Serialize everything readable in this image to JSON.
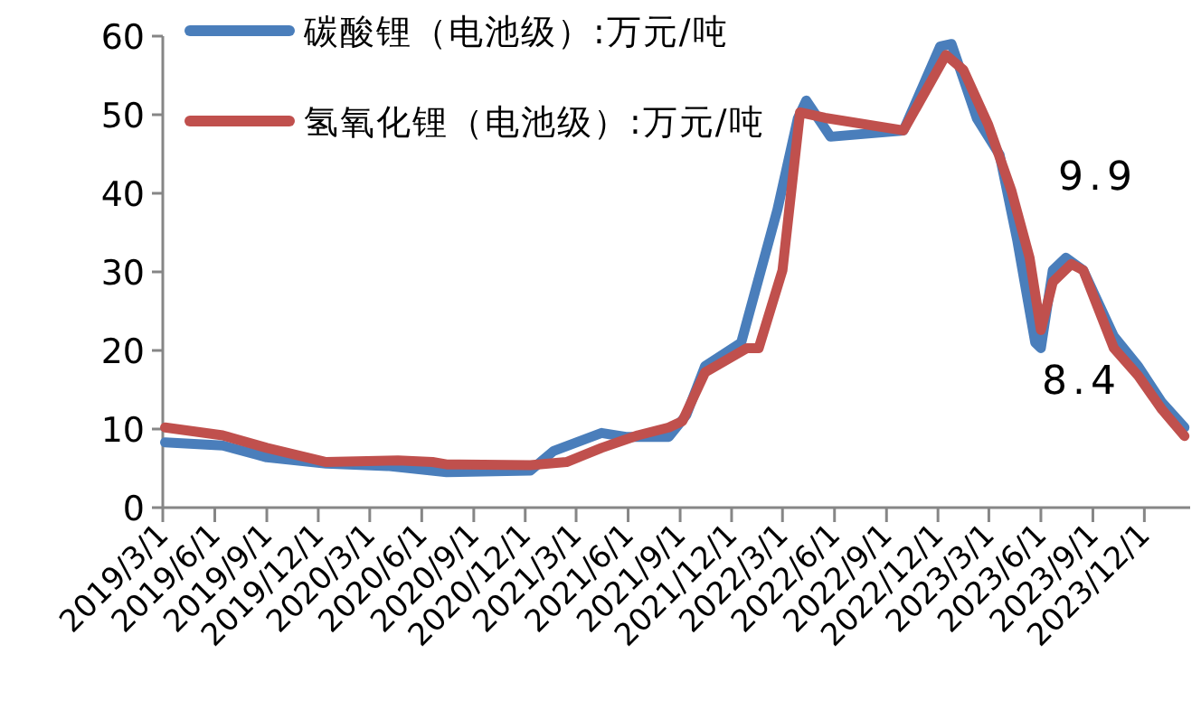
{
  "chart_data": {
    "type": "line",
    "xlim": [
      "2019-03-01",
      "2024-02-20"
    ],
    "xticks": [
      {
        "value": "2019-03-01",
        "label": "2019/3/1"
      },
      {
        "value": "2019-06-01",
        "label": "2019/6/1"
      },
      {
        "value": "2019-09-01",
        "label": "2019/9/1"
      },
      {
        "value": "2019-12-01",
        "label": "2019/12/1"
      },
      {
        "value": "2020-03-01",
        "label": "2020/3/1"
      },
      {
        "value": "2020-06-01",
        "label": "2020/6/1"
      },
      {
        "value": "2020-09-01",
        "label": "2020/9/1"
      },
      {
        "value": "2020-12-01",
        "label": "2020/12/1"
      },
      {
        "value": "2021-03-01",
        "label": "2021/3/1"
      },
      {
        "value": "2021-06-01",
        "label": "2021/6/1"
      },
      {
        "value": "2021-09-01",
        "label": "2021/9/1"
      },
      {
        "value": "2021-12-01",
        "label": "2021/12/1"
      },
      {
        "value": "2022-03-01",
        "label": "2022/3/1"
      },
      {
        "value": "2022-06-01",
        "label": "2022/6/1"
      },
      {
        "value": "2022-09-01",
        "label": "2022/9/1"
      },
      {
        "value": "2022-12-01",
        "label": "2022/12/1"
      },
      {
        "value": "2023-03-01",
        "label": "2023/3/1"
      },
      {
        "value": "2023-06-01",
        "label": "2023/6/1"
      },
      {
        "value": "2023-09-01",
        "label": "2023/9/1"
      },
      {
        "value": "2023-12-01",
        "label": "2023/12/1"
      }
    ],
    "ylim": [
      0,
      60
    ],
    "yticks": [
      0,
      10,
      20,
      30,
      40,
      50,
      60
    ],
    "grid": false,
    "legend": "top",
    "marker": "none",
    "line_style": "solid",
    "series": [
      {
        "name": "碳酸锂（电池级）:万元/吨",
        "color": "#4a7ebb",
        "x": [
          "2019-03-05",
          "2019-06-15",
          "2019-09-01",
          "2019-12-15",
          "2020-04-01",
          "2020-07-15",
          "2020-12-10",
          "2021-01-20",
          "2021-04-15",
          "2021-05-28",
          "2021-08-12",
          "2021-09-12",
          "2021-10-15",
          "2021-12-18",
          "2022-02-20",
          "2022-03-28",
          "2022-04-12",
          "2022-05-25",
          "2022-10-01",
          "2022-12-05",
          "2022-12-25",
          "2023-02-08",
          "2023-03-20",
          "2023-04-20",
          "2023-05-22",
          "2023-06-01",
          "2023-06-22",
          "2023-07-15",
          "2023-08-15",
          "2023-10-08",
          "2023-11-20",
          "2024-01-01",
          "2024-02-10"
        ],
        "values": [
          8.3,
          7.9,
          6.4,
          5.6,
          5.3,
          4.5,
          4.7,
          7.2,
          9.5,
          9.0,
          9.0,
          11.8,
          18,
          21,
          37.9,
          49.5,
          51.8,
          47.2,
          48.0,
          58.7,
          59,
          49.5,
          44.9,
          34.1,
          21,
          20.3,
          30.2,
          31.8,
          30.2,
          21.8,
          18,
          13.4,
          10.2
        ]
      },
      {
        "name": "氢氧化锂（电池级）:万元/吨",
        "color": "#c0504d",
        "x": [
          "2019-03-05",
          "2019-06-15",
          "2019-09-01",
          "2019-12-15",
          "2020-04-20",
          "2020-06-20",
          "2020-07-15",
          "2020-12-10",
          "2021-02-12",
          "2021-04-15",
          "2021-06-18",
          "2021-08-12",
          "2021-09-05",
          "2021-10-15",
          "2021-12-28",
          "2022-01-18",
          "2022-03-01",
          "2022-04-01",
          "2022-05-15",
          "2022-10-01",
          "2022-12-15",
          "2023-01-15",
          "2023-02-28",
          "2023-04-10",
          "2023-05-12",
          "2023-06-01",
          "2023-06-22",
          "2023-07-25",
          "2023-08-15",
          "2023-10-08",
          "2023-11-20",
          "2024-01-01",
          "2024-02-10"
        ],
        "values": [
          10.2,
          9.2,
          7.6,
          5.8,
          6.0,
          5.8,
          5.5,
          5.4,
          5.8,
          7.6,
          9.2,
          10.2,
          11.0,
          17.2,
          20.3,
          20.3,
          30.2,
          50.3,
          49.6,
          48.0,
          57.6,
          55.7,
          48.7,
          40.3,
          31.8,
          22.6,
          28.7,
          31,
          30.2,
          20.3,
          16.8,
          12.5,
          9.1
        ]
      }
    ],
    "annotations": [
      "9.9",
      "8.4"
    ]
  }
}
